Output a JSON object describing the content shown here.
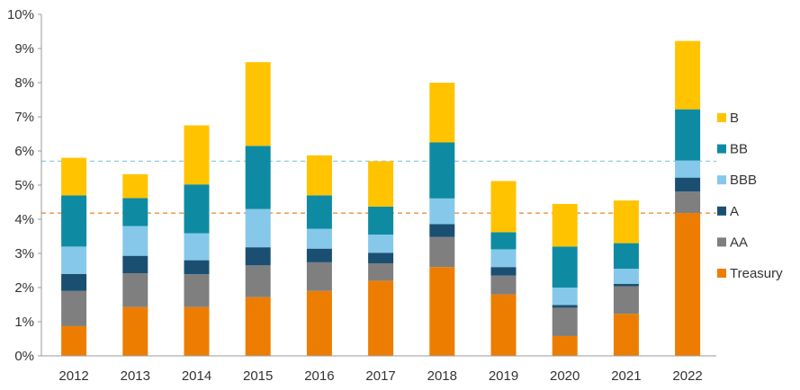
{
  "chart_data": {
    "type": "bar",
    "stacked": true,
    "title": "",
    "xlabel": "",
    "ylabel": "",
    "categories": [
      "2012",
      "2013",
      "2014",
      "2015",
      "2016",
      "2017",
      "2018",
      "2019",
      "2020",
      "2021",
      "2022"
    ],
    "ylim": [
      0,
      10
    ],
    "y_ticks": [
      "0%",
      "1%",
      "2%",
      "3%",
      "4%",
      "5%",
      "6%",
      "7%",
      "8%",
      "9%",
      "10%"
    ],
    "grid": false,
    "legend_position": "right",
    "series": [
      {
        "name": "Treasury",
        "color": "#ED7D00",
        "values": [
          0.87,
          1.43,
          1.43,
          1.72,
          1.9,
          2.2,
          2.6,
          1.8,
          0.58,
          1.23,
          4.18
        ]
      },
      {
        "name": "AA",
        "color": "#7F7F7F",
        "values": [
          1.03,
          0.99,
          0.96,
          0.93,
          0.84,
          0.51,
          0.88,
          0.55,
          0.83,
          0.81,
          0.63
        ]
      },
      {
        "name": "A",
        "color": "#1B4F72",
        "values": [
          0.5,
          0.51,
          0.41,
          0.53,
          0.4,
          0.31,
          0.38,
          0.25,
          0.08,
          0.07,
          0.41
        ]
      },
      {
        "name": "BBB",
        "color": "#85C8EA",
        "values": [
          0.8,
          0.87,
          0.79,
          1.12,
          0.58,
          0.53,
          0.75,
          0.52,
          0.51,
          0.44,
          0.5
        ]
      },
      {
        "name": "BB",
        "color": "#0E8BA3",
        "values": [
          1.5,
          0.82,
          1.43,
          1.85,
          0.98,
          0.82,
          1.64,
          0.5,
          1.2,
          0.75,
          1.5
        ]
      },
      {
        "name": "B",
        "color": "#FFC300",
        "values": [
          1.1,
          0.7,
          1.73,
          2.45,
          1.17,
          1.33,
          1.75,
          1.5,
          1.25,
          1.25,
          2.0
        ]
      }
    ],
    "reference_lines": [
      {
        "value": 5.7,
        "color": "#8FCBE3",
        "style": "dashed"
      },
      {
        "value": 4.18,
        "color": "#E8852A",
        "style": "dashed"
      }
    ]
  }
}
